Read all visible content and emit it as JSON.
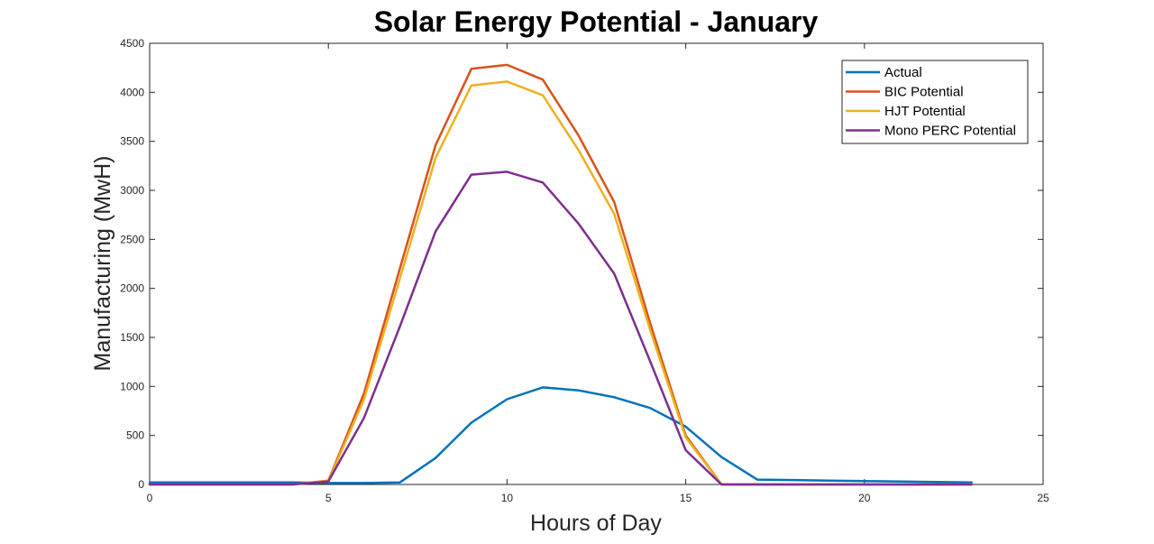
{
  "chart_data": {
    "type": "line",
    "title": "Solar Energy Potential - January",
    "xlabel": "Hours of Day",
    "ylabel": "Manufacturing (MwH)",
    "xlim": [
      0,
      25
    ],
    "ylim": [
      0,
      4500
    ],
    "xticks": [
      0,
      5,
      10,
      15,
      20,
      25
    ],
    "yticks": [
      0,
      500,
      1000,
      1500,
      2000,
      2500,
      3000,
      3500,
      4000,
      4500
    ],
    "grid": false,
    "legend_position": "top-right",
    "x": [
      0,
      1,
      2,
      3,
      4,
      5,
      6,
      7,
      8,
      9,
      10,
      11,
      12,
      13,
      14,
      15,
      16,
      17,
      18,
      19,
      20,
      21,
      22,
      23
    ],
    "series": [
      {
        "name": "Actual",
        "color": "#0072BD",
        "values": [
          20,
          20,
          20,
          20,
          20,
          15,
          15,
          20,
          270,
          630,
          870,
          990,
          960,
          890,
          780,
          590,
          280,
          50,
          45,
          40,
          35,
          30,
          25,
          20
        ]
      },
      {
        "name": "BIC Potential",
        "color": "#D95319",
        "values": [
          0,
          0,
          0,
          0,
          0,
          40,
          930,
          2200,
          3460,
          4240,
          4280,
          4130,
          3560,
          2880,
          1650,
          500,
          0,
          0,
          0,
          0,
          0,
          0,
          0,
          0
        ]
      },
      {
        "name": "HJT Potential",
        "color": "#EDB120",
        "values": [
          0,
          0,
          0,
          0,
          0,
          35,
          870,
          2100,
          3330,
          4070,
          4110,
          3970,
          3410,
          2760,
          1580,
          480,
          0,
          0,
          0,
          0,
          0,
          0,
          0,
          0
        ]
      },
      {
        "name": "Mono PERC Potential",
        "color": "#7E2F8E",
        "values": [
          0,
          0,
          0,
          0,
          0,
          30,
          680,
          1610,
          2580,
          3160,
          3190,
          3080,
          2660,
          2150,
          1260,
          350,
          0,
          0,
          0,
          0,
          0,
          0,
          0,
          0
        ]
      }
    ]
  }
}
